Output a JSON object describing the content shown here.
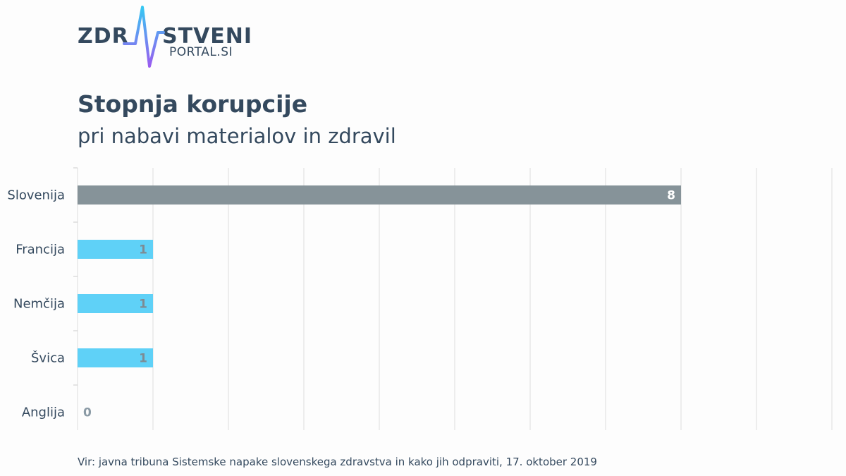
{
  "logo": {
    "left": "ZDR",
    "right": "STVENI",
    "sub": "PORTAL.SI"
  },
  "header": {
    "title": "Stopnja korupcije",
    "subtitle": "pri nabavi materialov in zdravil"
  },
  "source": "Vir: javna tribuna Sistemske napake slovenskega zdravstva in kako jih odpraviti, 17. oktober 2019",
  "colors": {
    "highlight_bar": "#869399",
    "bar": "#5fd1f7",
    "text": "#34495e",
    "grid": "#dddddd",
    "zero_label": "#8a9aa5"
  },
  "chart_data": {
    "type": "bar",
    "orientation": "horizontal",
    "categories": [
      "Slovenija",
      "Francija",
      "Nemčija",
      "Švica",
      "Anglija"
    ],
    "values": [
      8,
      1,
      1,
      1,
      0
    ],
    "xlim": [
      0,
      10
    ],
    "grid": true,
    "data_labels": true,
    "title": "Stopnja korupcije",
    "subtitle": "pri nabavi materialov in zdravil"
  }
}
